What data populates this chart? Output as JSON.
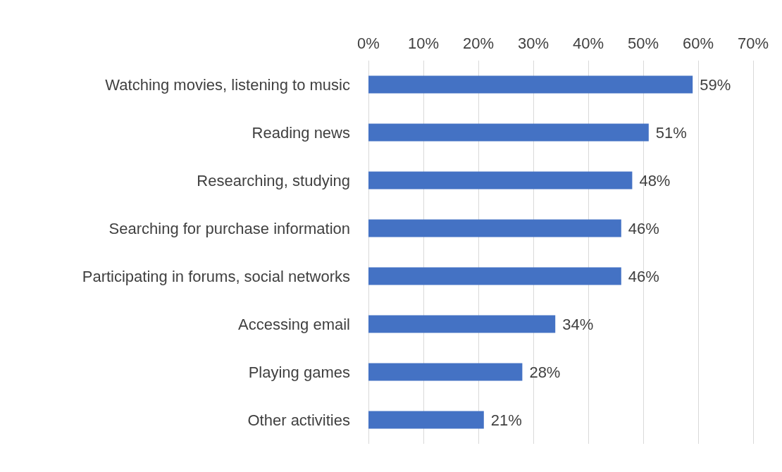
{
  "chart_data": {
    "type": "bar",
    "orientation": "horizontal",
    "categories": [
      "Watching movies, listening to music",
      "Reading news",
      "Researching, studying",
      "Searching for purchase information",
      "Participating in forums, social networks",
      "Accessing email",
      "Playing games",
      "Other activities"
    ],
    "values": [
      59,
      51,
      48,
      46,
      46,
      34,
      28,
      21
    ],
    "value_labels": [
      "59%",
      "51%",
      "48%",
      "46%",
      "46%",
      "34%",
      "28%",
      "21%"
    ],
    "color": "#4472c4",
    "xlim": [
      0,
      70
    ],
    "xticks": [
      {
        "value": 0,
        "label": "0%"
      },
      {
        "value": 10,
        "label": "10%"
      },
      {
        "value": 20,
        "label": "20%"
      },
      {
        "value": 30,
        "label": "30%"
      },
      {
        "value": 40,
        "label": "40%"
      },
      {
        "value": 50,
        "label": "50%"
      },
      {
        "value": 60,
        "label": "60%"
      },
      {
        "value": 70,
        "label": "70%"
      }
    ],
    "grid": "x"
  }
}
